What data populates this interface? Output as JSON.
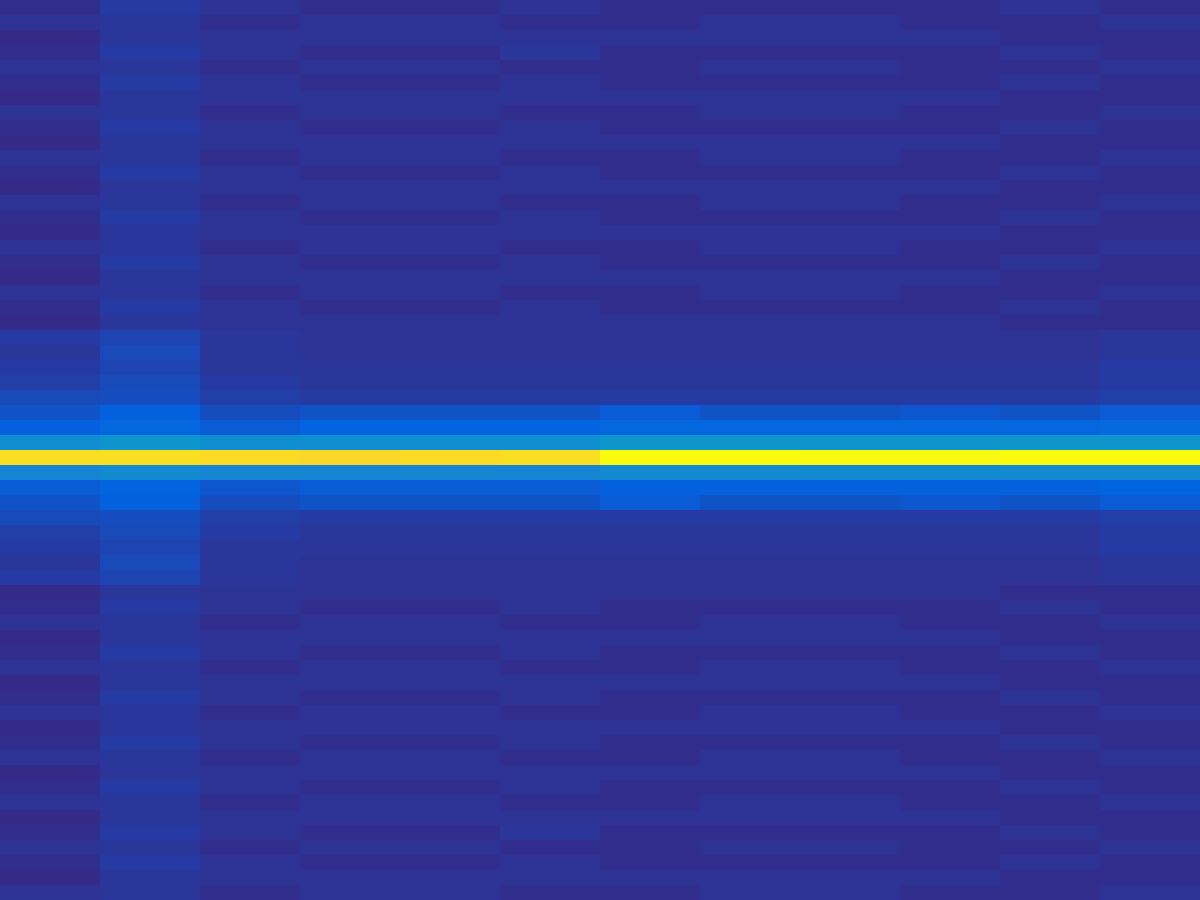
{
  "chart_data": {
    "type": "heatmap",
    "tick_labels": false,
    "cells": [
      [
        0.02,
        0.05,
        0.03,
        0.02,
        0.02,
        0.03,
        0.02,
        0.02,
        0.02,
        0.02,
        0.03,
        0.02
      ],
      [
        0.03,
        0.04,
        0.02,
        0.03,
        0.03,
        0.02,
        0.02,
        0.03,
        0.03,
        0.02,
        0.02,
        0.03
      ],
      [
        0.01,
        0.04,
        0.03,
        0.03,
        0.03,
        0.03,
        0.03,
        0.03,
        0.03,
        0.03,
        0.02,
        0.02
      ],
      [
        0.02,
        0.05,
        0.03,
        0.02,
        0.02,
        0.04,
        0.02,
        0.02,
        0.02,
        0.02,
        0.03,
        0.02
      ],
      [
        0.03,
        0.04,
        0.02,
        0.03,
        0.03,
        0.02,
        0.02,
        0.03,
        0.03,
        0.02,
        0.02,
        0.03
      ],
      [
        0.02,
        0.05,
        0.03,
        0.02,
        0.02,
        0.03,
        0.02,
        0.02,
        0.02,
        0.02,
        0.03,
        0.02
      ],
      [
        0.01,
        0.04,
        0.03,
        0.03,
        0.03,
        0.03,
        0.03,
        0.03,
        0.03,
        0.03,
        0.02,
        0.02
      ],
      [
        0.03,
        0.04,
        0.02,
        0.03,
        0.03,
        0.02,
        0.02,
        0.03,
        0.03,
        0.02,
        0.02,
        0.03
      ],
      [
        0.02,
        0.05,
        0.03,
        0.02,
        0.02,
        0.03,
        0.02,
        0.02,
        0.02,
        0.02,
        0.03,
        0.02
      ],
      [
        0.01,
        0.04,
        0.03,
        0.03,
        0.03,
        0.03,
        0.03,
        0.03,
        0.03,
        0.03,
        0.02,
        0.02
      ],
      [
        0.03,
        0.04,
        0.02,
        0.03,
        0.03,
        0.02,
        0.02,
        0.03,
        0.03,
        0.02,
        0.02,
        0.03
      ],
      [
        0.02,
        0.05,
        0.03,
        0.02,
        0.02,
        0.03,
        0.02,
        0.02,
        0.02,
        0.02,
        0.03,
        0.02
      ],
      [
        0.01,
        0.04,
        0.03,
        0.03,
        0.03,
        0.03,
        0.03,
        0.03,
        0.03,
        0.03,
        0.02,
        0.02
      ],
      [
        0.03,
        0.04,
        0.02,
        0.03,
        0.03,
        0.02,
        0.02,
        0.03,
        0.03,
        0.02,
        0.02,
        0.03
      ],
      [
        0.02,
        0.05,
        0.03,
        0.02,
        0.02,
        0.03,
        0.02,
        0.02,
        0.02,
        0.02,
        0.03,
        0.02
      ],
      [
        0.01,
        0.04,
        0.03,
        0.03,
        0.03,
        0.03,
        0.03,
        0.03,
        0.03,
        0.03,
        0.02,
        0.02
      ],
      [
        0.03,
        0.04,
        0.02,
        0.03,
        0.03,
        0.02,
        0.02,
        0.03,
        0.03,
        0.02,
        0.02,
        0.03
      ],
      [
        0.02,
        0.05,
        0.03,
        0.02,
        0.02,
        0.03,
        0.02,
        0.02,
        0.02,
        0.02,
        0.03,
        0.02
      ],
      [
        0.01,
        0.04,
        0.03,
        0.03,
        0.03,
        0.03,
        0.03,
        0.03,
        0.03,
        0.03,
        0.02,
        0.02
      ],
      [
        0.03,
        0.04,
        0.02,
        0.03,
        0.03,
        0.02,
        0.02,
        0.03,
        0.03,
        0.02,
        0.02,
        0.03
      ],
      [
        0.02,
        0.05,
        0.03,
        0.02,
        0.02,
        0.03,
        0.02,
        0.02,
        0.02,
        0.02,
        0.03,
        0.02
      ],
      [
        0.01,
        0.04,
        0.03,
        0.03,
        0.03,
        0.03,
        0.03,
        0.03,
        0.03,
        0.03,
        0.02,
        0.02
      ],
      [
        0.05,
        0.07,
        0.04,
        0.03,
        0.03,
        0.03,
        0.03,
        0.03,
        0.03,
        0.03,
        0.03,
        0.04
      ],
      [
        0.04,
        0.08,
        0.04,
        0.03,
        0.03,
        0.03,
        0.03,
        0.03,
        0.03,
        0.03,
        0.03,
        0.04
      ],
      [
        0.05,
        0.07,
        0.04,
        0.04,
        0.04,
        0.04,
        0.04,
        0.04,
        0.04,
        0.04,
        0.04,
        0.05
      ],
      [
        0.06,
        0.08,
        0.05,
        0.04,
        0.04,
        0.04,
        0.04,
        0.04,
        0.04,
        0.04,
        0.04,
        0.05
      ],
      [
        0.08,
        0.09,
        0.06,
        0.05,
        0.05,
        0.05,
        0.05,
        0.05,
        0.05,
        0.05,
        0.05,
        0.06
      ],
      [
        0.1,
        0.13,
        0.09,
        0.1,
        0.1,
        0.1,
        0.12,
        0.1,
        0.1,
        0.11,
        0.1,
        0.12
      ],
      [
        0.13,
        0.15,
        0.12,
        0.14,
        0.14,
        0.14,
        0.15,
        0.15,
        0.15,
        0.15,
        0.15,
        0.16
      ],
      [
        0.3,
        0.32,
        0.3,
        0.3,
        0.3,
        0.3,
        0.32,
        0.32,
        0.32,
        0.32,
        0.32,
        0.32
      ],
      [
        0.92,
        0.92,
        0.91,
        0.9,
        0.91,
        0.92,
        1.0,
        1.0,
        0.99,
        0.99,
        1.0,
        1.0
      ],
      [
        0.26,
        0.28,
        0.26,
        0.26,
        0.26,
        0.26,
        0.28,
        0.28,
        0.28,
        0.28,
        0.28,
        0.28
      ],
      [
        0.12,
        0.14,
        0.11,
        0.12,
        0.12,
        0.12,
        0.13,
        0.13,
        0.13,
        0.13,
        0.13,
        0.14
      ],
      [
        0.1,
        0.13,
        0.09,
        0.1,
        0.1,
        0.1,
        0.12,
        0.1,
        0.1,
        0.11,
        0.1,
        0.12
      ],
      [
        0.08,
        0.09,
        0.06,
        0.05,
        0.05,
        0.05,
        0.05,
        0.05,
        0.05,
        0.05,
        0.05,
        0.06
      ],
      [
        0.06,
        0.08,
        0.05,
        0.04,
        0.04,
        0.04,
        0.04,
        0.04,
        0.04,
        0.04,
        0.04,
        0.05
      ],
      [
        0.05,
        0.07,
        0.04,
        0.04,
        0.04,
        0.04,
        0.04,
        0.04,
        0.04,
        0.04,
        0.04,
        0.05
      ],
      [
        0.04,
        0.08,
        0.04,
        0.03,
        0.03,
        0.03,
        0.03,
        0.03,
        0.03,
        0.03,
        0.03,
        0.04
      ],
      [
        0.05,
        0.07,
        0.04,
        0.03,
        0.03,
        0.03,
        0.03,
        0.03,
        0.03,
        0.03,
        0.03,
        0.04
      ],
      [
        0.01,
        0.04,
        0.03,
        0.03,
        0.03,
        0.03,
        0.03,
        0.03,
        0.03,
        0.03,
        0.02,
        0.02
      ],
      [
        0.02,
        0.05,
        0.03,
        0.02,
        0.02,
        0.03,
        0.02,
        0.02,
        0.02,
        0.02,
        0.03,
        0.02
      ],
      [
        0.03,
        0.04,
        0.02,
        0.03,
        0.03,
        0.02,
        0.02,
        0.03,
        0.03,
        0.02,
        0.02,
        0.03
      ],
      [
        0.01,
        0.04,
        0.03,
        0.03,
        0.03,
        0.03,
        0.03,
        0.03,
        0.03,
        0.03,
        0.02,
        0.02
      ],
      [
        0.02,
        0.05,
        0.03,
        0.02,
        0.02,
        0.03,
        0.02,
        0.02,
        0.02,
        0.02,
        0.03,
        0.02
      ],
      [
        0.03,
        0.04,
        0.02,
        0.03,
        0.03,
        0.02,
        0.02,
        0.03,
        0.03,
        0.02,
        0.02,
        0.03
      ],
      [
        0.01,
        0.04,
        0.03,
        0.03,
        0.03,
        0.03,
        0.03,
        0.03,
        0.03,
        0.03,
        0.02,
        0.02
      ],
      [
        0.02,
        0.05,
        0.03,
        0.02,
        0.02,
        0.03,
        0.02,
        0.02,
        0.02,
        0.02,
        0.03,
        0.02
      ],
      [
        0.03,
        0.04,
        0.02,
        0.03,
        0.03,
        0.02,
        0.02,
        0.03,
        0.03,
        0.02,
        0.02,
        0.03
      ],
      [
        0.01,
        0.04,
        0.03,
        0.03,
        0.03,
        0.03,
        0.03,
        0.03,
        0.03,
        0.03,
        0.02,
        0.02
      ],
      [
        0.02,
        0.05,
        0.03,
        0.02,
        0.02,
        0.03,
        0.02,
        0.02,
        0.02,
        0.02,
        0.03,
        0.02
      ],
      [
        0.03,
        0.04,
        0.02,
        0.03,
        0.03,
        0.02,
        0.02,
        0.03,
        0.03,
        0.02,
        0.02,
        0.03
      ],
      [
        0.01,
        0.04,
        0.03,
        0.03,
        0.03,
        0.03,
        0.03,
        0.03,
        0.03,
        0.03,
        0.02,
        0.02
      ],
      [
        0.02,
        0.05,
        0.03,
        0.02,
        0.02,
        0.03,
        0.02,
        0.02,
        0.02,
        0.02,
        0.03,
        0.02
      ],
      [
        0.03,
        0.04,
        0.02,
        0.03,
        0.03,
        0.02,
        0.02,
        0.03,
        0.03,
        0.02,
        0.02,
        0.03
      ],
      [
        0.01,
        0.04,
        0.03,
        0.03,
        0.03,
        0.03,
        0.03,
        0.03,
        0.03,
        0.03,
        0.02,
        0.02
      ],
      [
        0.02,
        0.05,
        0.03,
        0.02,
        0.02,
        0.04,
        0.02,
        0.02,
        0.02,
        0.02,
        0.03,
        0.02
      ],
      [
        0.03,
        0.04,
        0.02,
        0.03,
        0.03,
        0.02,
        0.02,
        0.03,
        0.03,
        0.02,
        0.02,
        0.03
      ],
      [
        0.02,
        0.05,
        0.03,
        0.02,
        0.02,
        0.03,
        0.02,
        0.02,
        0.02,
        0.02,
        0.03,
        0.02
      ],
      [
        0.01,
        0.04,
        0.03,
        0.03,
        0.03,
        0.03,
        0.03,
        0.03,
        0.03,
        0.03,
        0.02,
        0.02
      ],
      [
        0.03,
        0.04,
        0.02,
        0.03,
        0.03,
        0.02,
        0.02,
        0.03,
        0.03,
        0.02,
        0.02,
        0.03
      ]
    ]
  }
}
